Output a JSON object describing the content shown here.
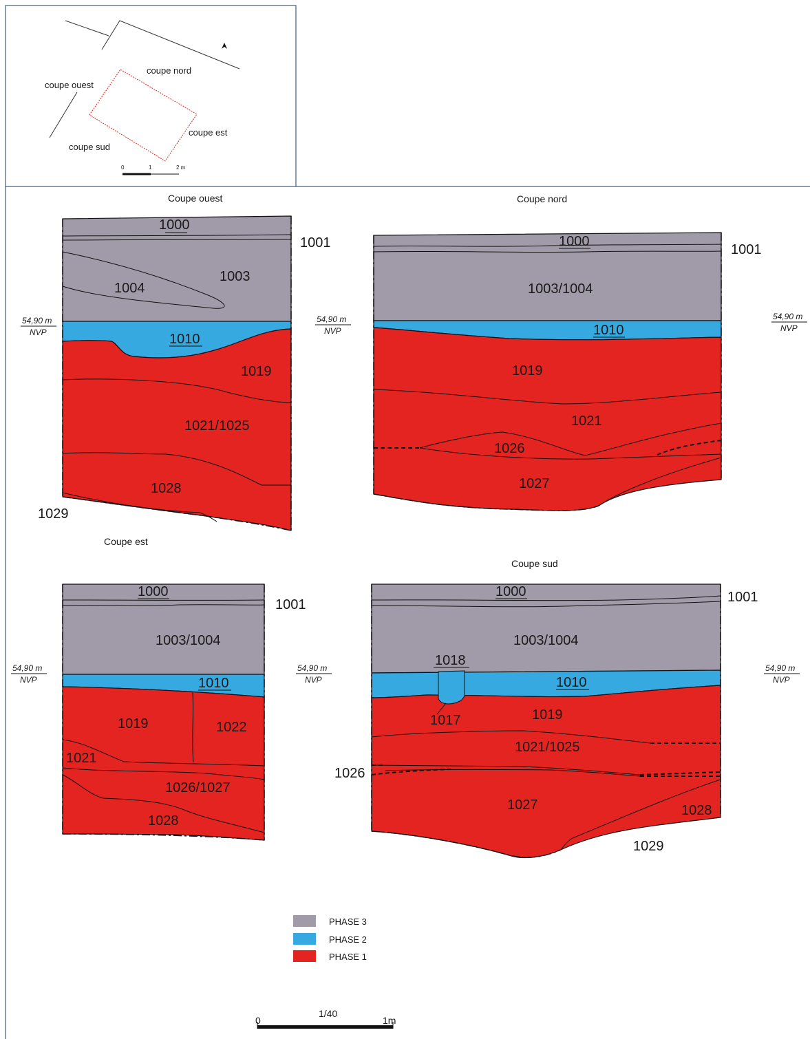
{
  "colors": {
    "phase3": "#a19aa8",
    "phase2": "#35a9e0",
    "phase1": "#e42420",
    "frame": "#1f3a5f",
    "inset_outline": "#e42420"
  },
  "inset": {
    "north_icon": "north-arrow-icon",
    "labels": {
      "ouest": "coupe ouest",
      "nord": "coupe nord",
      "est": "coupe est",
      "sud": "coupe sud"
    },
    "scale": {
      "t0": "0",
      "t1": "1",
      "t2": "2 m"
    }
  },
  "elevation": {
    "value": "54,90 m",
    "ref": "NVP"
  },
  "sections": {
    "ouest": {
      "title": "Coupe ouest",
      "units": {
        "u1000": "1000",
        "u1001": "1001",
        "u1003": "1003",
        "u1004": "1004",
        "u1010": "1010",
        "u1019": "1019",
        "u1021": "1021/1025",
        "u1028": "1028",
        "u1029": "1029"
      }
    },
    "nord": {
      "title": "Coupe nord",
      "units": {
        "u1000": "1000",
        "u1001": "1001",
        "u1003": "1003/1004",
        "u1010": "1010",
        "u1019": "1019",
        "u1021": "1021",
        "u1026": "1026",
        "u1027": "1027"
      }
    },
    "est": {
      "title": "Coupe est",
      "units": {
        "u1000": "1000",
        "u1001": "1001",
        "u1003": "1003/1004",
        "u1010": "1010",
        "u1019": "1019",
        "u1022": "1022",
        "u1021": "1021",
        "u1026": "1026/1027",
        "u1028": "1028"
      }
    },
    "sud": {
      "title": "Coupe sud",
      "units": {
        "u1000": "1000",
        "u1001": "1001",
        "u1003": "1003/1004",
        "u1018": "1018",
        "u1010": "1010",
        "u1017": "1017",
        "u1019": "1019",
        "u1021": "1021/1025",
        "u1026": "1026",
        "u1027": "1027",
        "u1028": "1028",
        "u1029": "1029"
      }
    }
  },
  "legend": {
    "phase3": "PHASE 3",
    "phase2": "PHASE 2",
    "phase1": "PHASE 1"
  },
  "scalebar": {
    "left": "0",
    "ratio": "1/40",
    "right": "1m"
  }
}
